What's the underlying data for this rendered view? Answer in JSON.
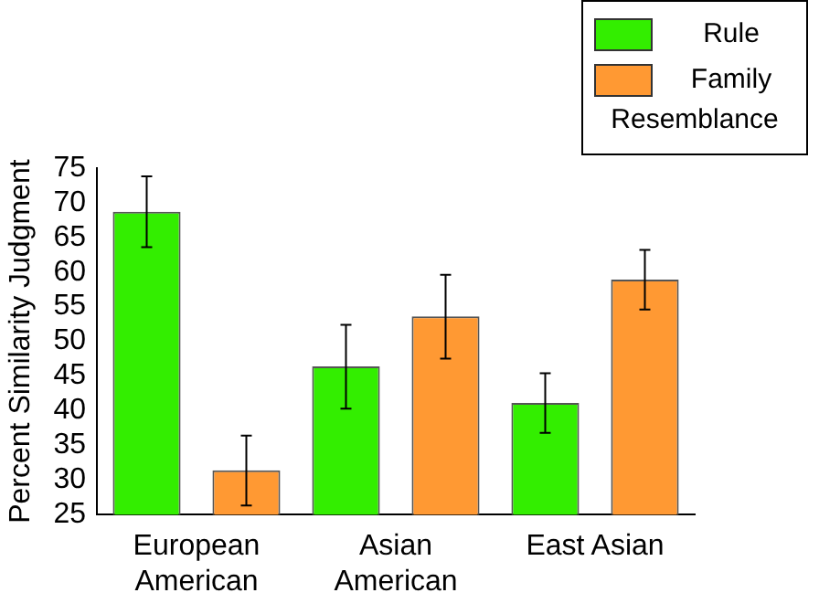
{
  "chart_data": {
    "type": "bar",
    "ylabel": "Percent Similarity Judgment",
    "categories": [
      "European American",
      "Asian American",
      "East Asian"
    ],
    "series": [
      {
        "name": "Rule",
        "color": "#33ee00",
        "values": [
          68.7,
          46.4,
          41.1
        ],
        "errors": [
          [
            63.6,
            73.8
          ],
          [
            40.3,
            52.4
          ],
          [
            36.8,
            45.4
          ]
        ]
      },
      {
        "name": "Family Resemblance",
        "color": "#ff9933",
        "values": [
          31.4,
          53.6,
          58.9
        ],
        "errors": [
          [
            26.3,
            36.4
          ],
          [
            47.5,
            59.6
          ],
          [
            54.6,
            63.2
          ]
        ]
      }
    ],
    "ylim": [
      25,
      75
    ],
    "yticks": [
      25,
      30,
      35,
      40,
      45,
      50,
      55,
      60,
      65,
      70,
      75
    ],
    "grid": false,
    "legend": "top right"
  }
}
